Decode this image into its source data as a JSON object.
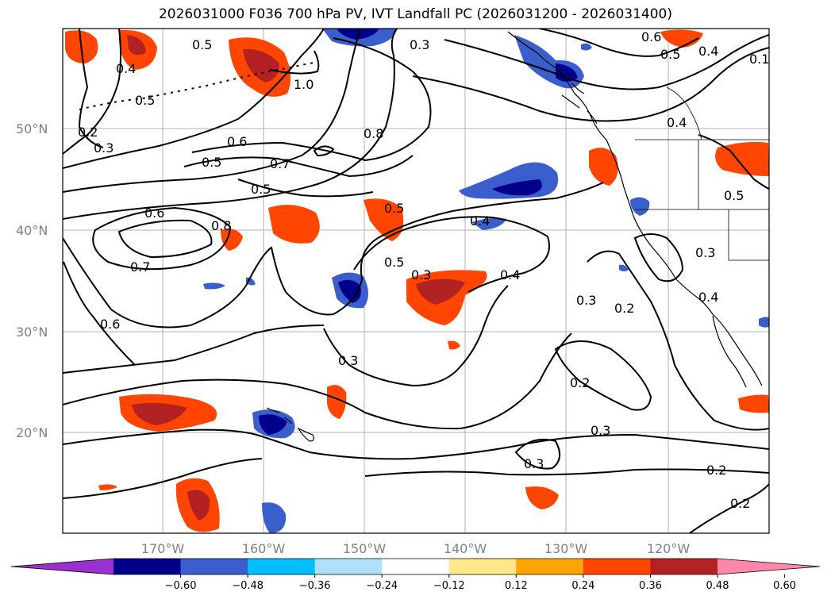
{
  "title": "2026031000 F036 700 hPa PV, IVT Landfall PC (2026031200 - 2026031400)",
  "latitude_labels": [
    "50°N",
    "40°N",
    "30°N",
    "20°N"
  ],
  "longitude_labels": [
    "170°W",
    "160°W",
    "150°W",
    "140°W",
    "130°W",
    "120°W"
  ],
  "colorbar": {
    "ticks": [
      "−0.60",
      "−0.48",
      "−0.36",
      "−0.24",
      "−0.12",
      "0.12",
      "0.24",
      "0.36",
      "0.48",
      "0.60"
    ],
    "colors": [
      "#9b30d0",
      "#00008b",
      "#3a5fcd",
      "#00bfff",
      "#aee1f8",
      "#ffffff",
      "#ffe88c",
      "#ffa500",
      "#ff4500",
      "#b22222",
      "#ff88aa"
    ]
  },
  "contour_labels": [
    "0.5",
    "0.3",
    "0.6",
    "0.4",
    "0.4",
    "0.5",
    "1.0",
    "0.5",
    "0.2",
    "0.3",
    "0.8",
    "0.4",
    "0.6",
    "0.7",
    "0.5",
    "0.5",
    "0.6",
    "0.8",
    "0.5",
    "0.5",
    "0.4",
    "0.7",
    "0.5",
    "0.3",
    "0.4",
    "0.3",
    "0.2",
    "0.6",
    "0.3",
    "0.2",
    "0.3",
    "0.3",
    "0.2",
    "0.2",
    "0.3",
    "0.4",
    "0.1"
  ],
  "colors": {
    "contour": "#000000",
    "gridline": "#b0b0b0",
    "coastline": "#000000"
  }
}
